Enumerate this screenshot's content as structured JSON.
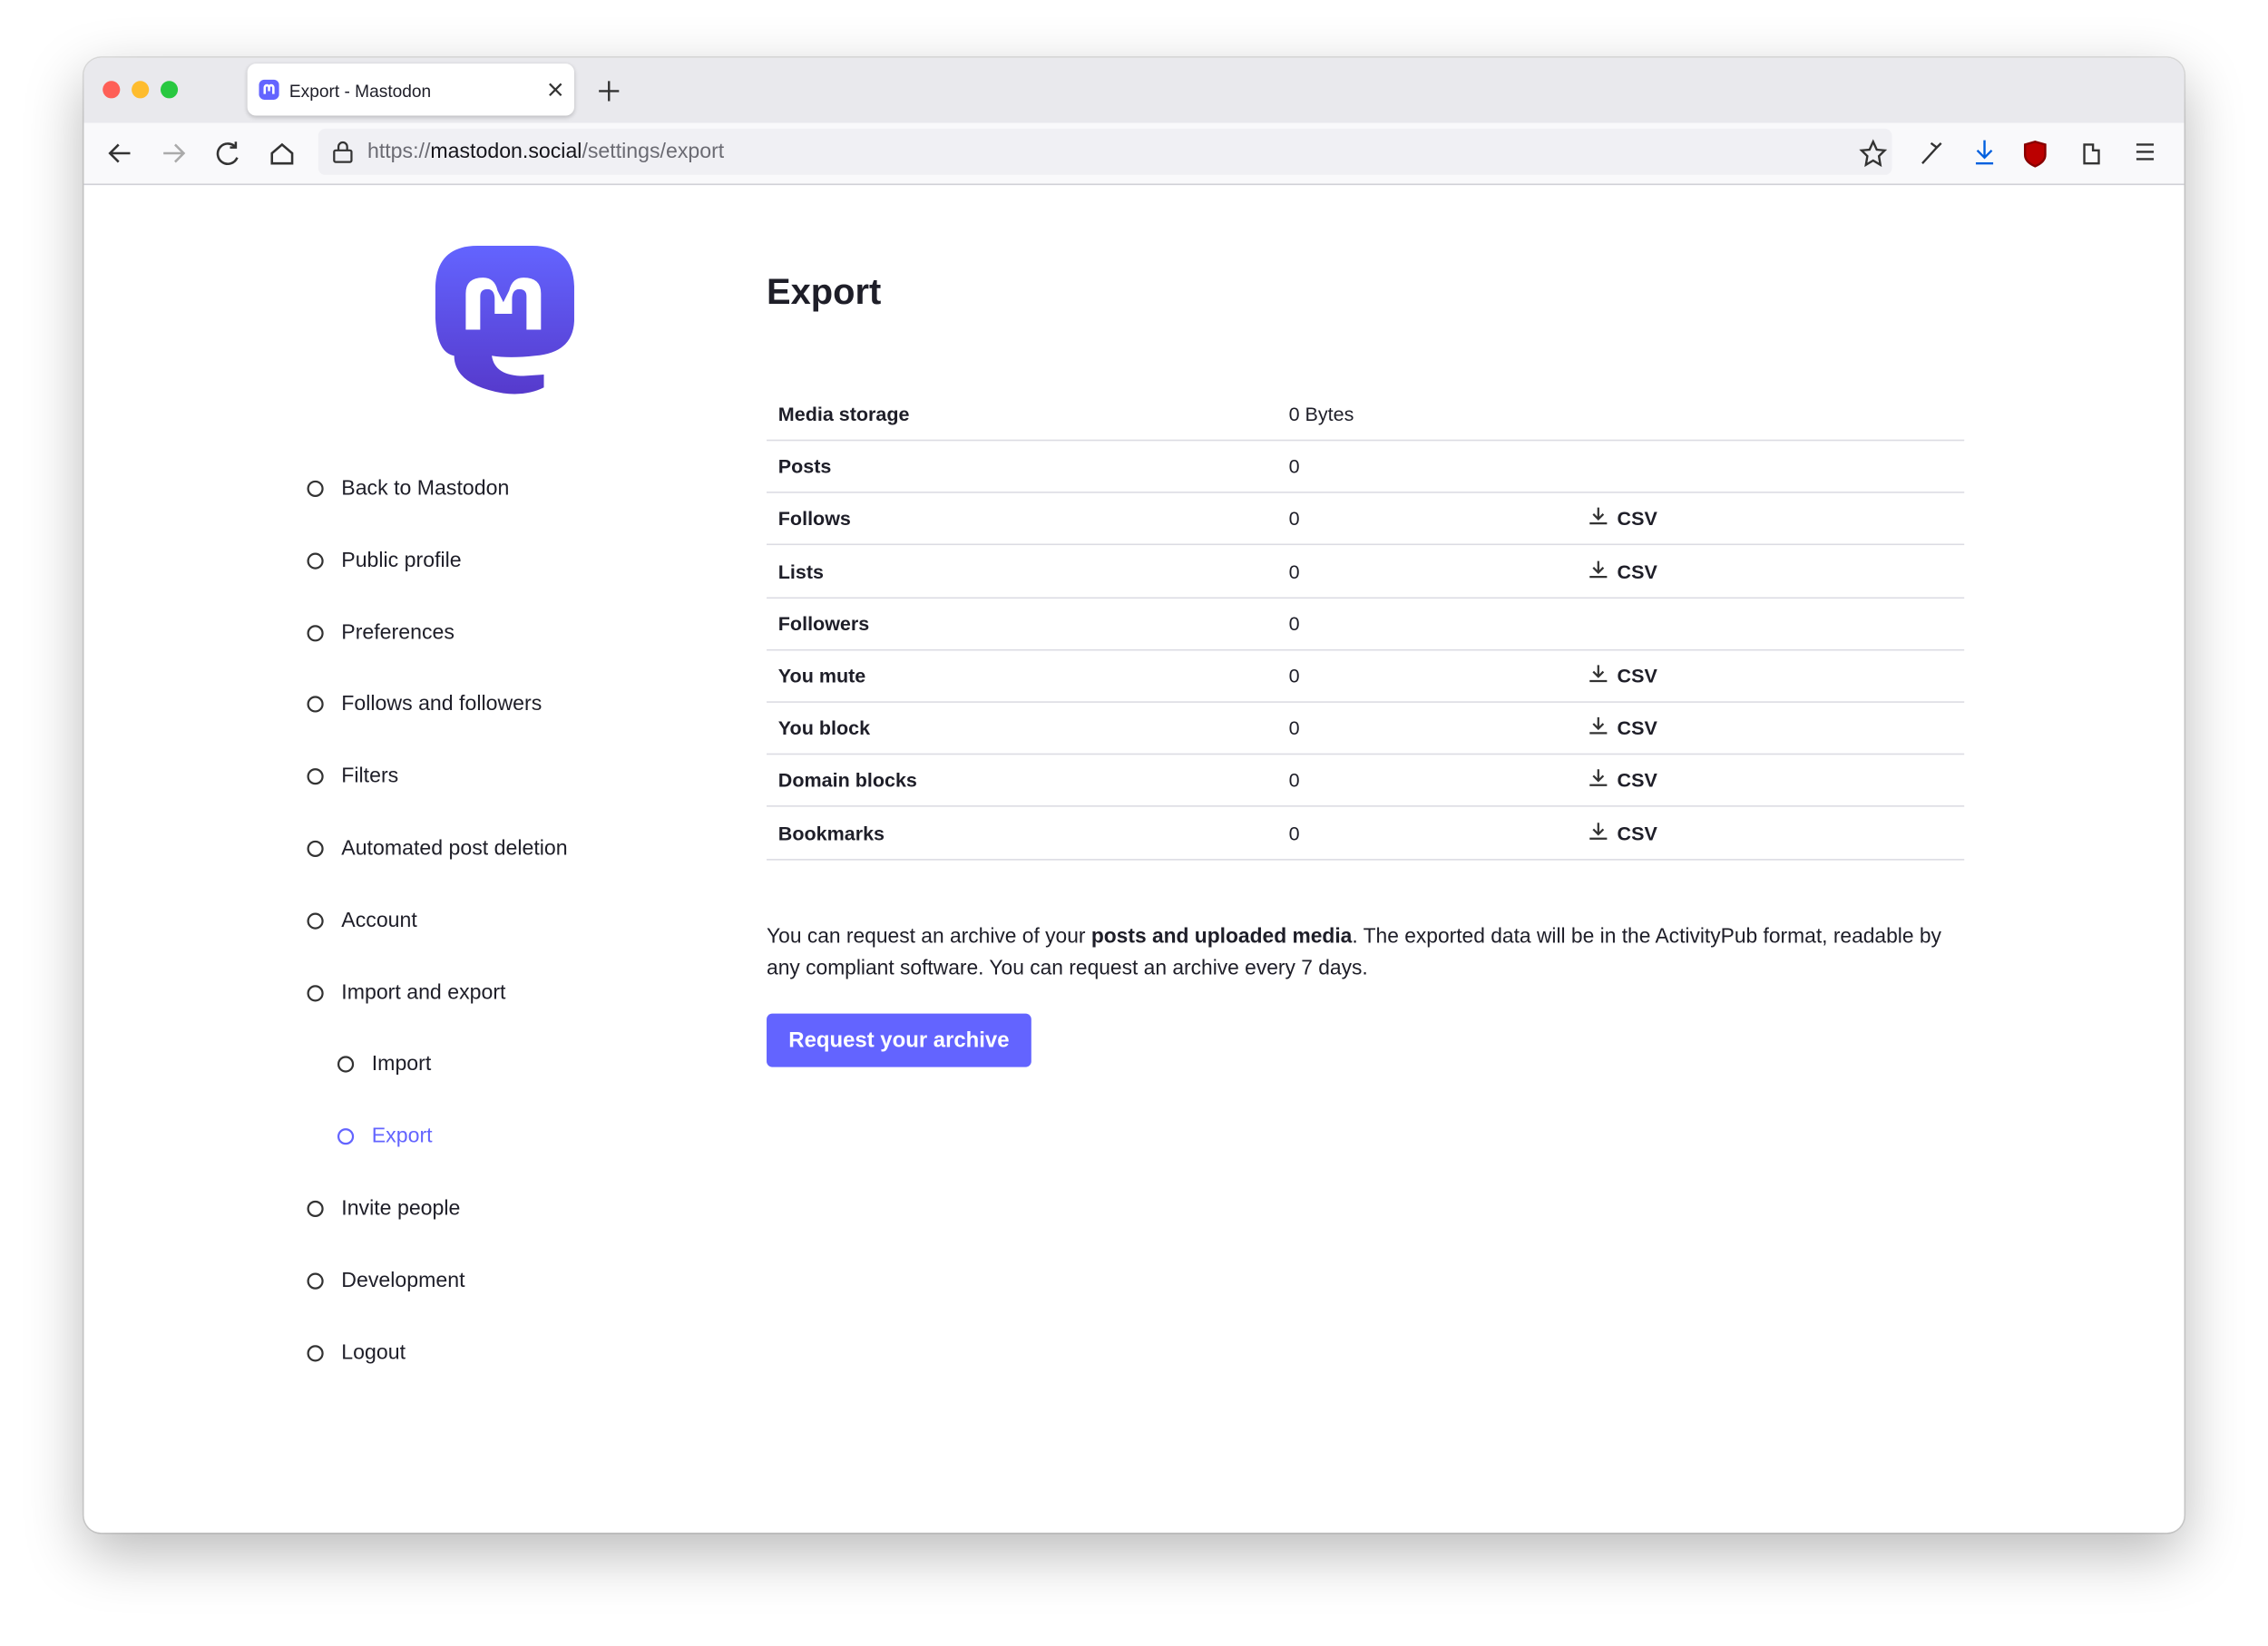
{
  "browser": {
    "tab_title": "Export - Mastodon",
    "url": {
      "scheme": "https://",
      "host": "mastodon.social",
      "path": "/settings/export"
    }
  },
  "sidebar": {
    "items": [
      {
        "label": "Back to Mastodon"
      },
      {
        "label": "Public profile"
      },
      {
        "label": "Preferences"
      },
      {
        "label": "Follows and followers"
      },
      {
        "label": "Filters"
      },
      {
        "label": "Automated post deletion"
      },
      {
        "label": "Account"
      },
      {
        "label": "Import and export"
      },
      {
        "label": "Import",
        "sub": true
      },
      {
        "label": "Export",
        "sub": true,
        "active": true
      },
      {
        "label": "Invite people"
      },
      {
        "label": "Development"
      },
      {
        "label": "Logout"
      }
    ]
  },
  "main": {
    "heading": "Export",
    "table": {
      "rows": [
        {
          "label": "Media storage",
          "value": "0 Bytes"
        },
        {
          "label": "Posts",
          "value": "0"
        },
        {
          "label": "Follows",
          "value": "0",
          "action": "CSV"
        },
        {
          "label": "Lists",
          "value": "0",
          "action": "CSV"
        },
        {
          "label": "Followers",
          "value": "0"
        },
        {
          "label": "You mute",
          "value": "0",
          "action": "CSV"
        },
        {
          "label": "You block",
          "value": "0",
          "action": "CSV"
        },
        {
          "label": "Domain blocks",
          "value": "0",
          "action": "CSV"
        },
        {
          "label": "Bookmarks",
          "value": "0",
          "action": "CSV"
        }
      ]
    },
    "description": {
      "before": "You can request an archive of your ",
      "bold": "posts and uploaded media",
      "after": ". The exported data will be in the ActivityPub format, readable by any compliant software. You can request an archive every 7 days."
    },
    "button": "Request your archive"
  }
}
